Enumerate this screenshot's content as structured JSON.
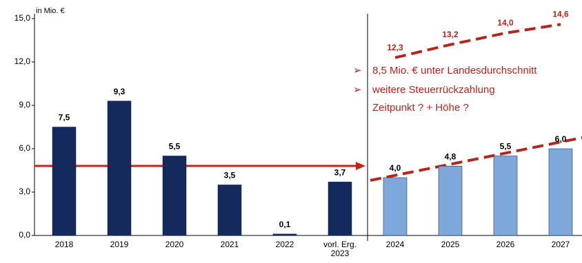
{
  "chart_data": {
    "type": "bar",
    "y_axis_label": "in Mio. €",
    "categories": [
      "2018",
      "2019",
      "2020",
      "2021",
      "2022",
      "vorl. Erg.\n2023",
      "2024",
      "2025",
      "2026",
      "2027"
    ],
    "values": [
      7.5,
      9.3,
      5.5,
      3.5,
      0.1,
      3.7,
      4.0,
      4.8,
      5.5,
      6.0
    ],
    "value_labels": [
      "7,5",
      "9,3",
      "5,5",
      "3,5",
      "0,1",
      "3,7",
      "4,0",
      "4,8",
      "5,5",
      "6,0"
    ],
    "colors": [
      "#142a5c",
      "#142a5c",
      "#142a5c",
      "#142a5c",
      "#142a5c",
      "#142a5c",
      "#7ea8dc",
      "#7ea8dc",
      "#7ea8dc",
      "#7ea8dc"
    ],
    "ylim": [
      0,
      15
    ],
    "yticks": [
      {
        "value": 0,
        "label": "0,0"
      },
      {
        "value": 3,
        "label": "3,0"
      },
      {
        "value": 6,
        "label": "6,0"
      },
      {
        "value": 9,
        "label": "9,0"
      },
      {
        "value": 12,
        "label": "12,0"
      },
      {
        "value": 15,
        "label": "15,0"
      }
    ],
    "upper_trend": {
      "categories": [
        "2024",
        "2025",
        "2026",
        "2027"
      ],
      "values": [
        12.3,
        13.2,
        14.0,
        14.6
      ],
      "value_labels": [
        "12,3",
        "13,2",
        "14,0",
        "14,6"
      ],
      "color": "#b3261e"
    },
    "annotations": [
      "8,5 Mio. € unter Landesdurchschnitt",
      "weitere Steuerrückzahlung",
      "Zeitpunkt ?  + Höhe ?"
    ],
    "grid": false
  }
}
